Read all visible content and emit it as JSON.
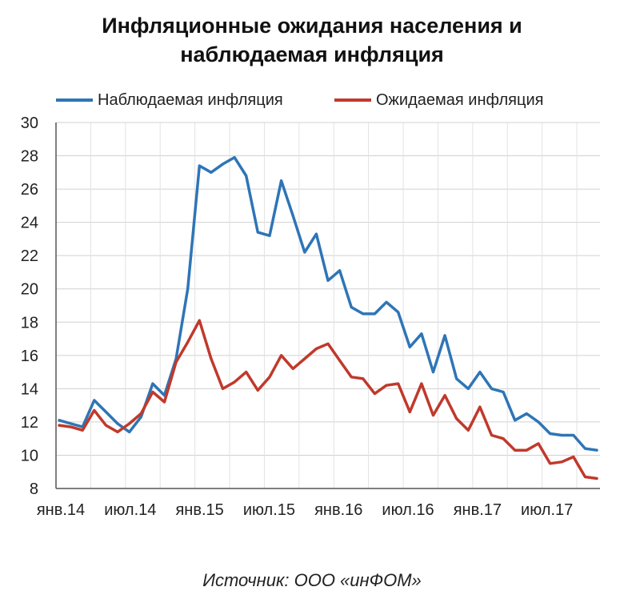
{
  "chart_data": {
    "type": "line",
    "title_line1": "Инфляционные ожидания  населения и",
    "title_line2": "наблюдаемая инфляция",
    "source": "Источник: ООО «инФОМ»",
    "ylim": [
      8,
      30
    ],
    "yticks": [
      8,
      10,
      12,
      14,
      16,
      18,
      20,
      22,
      24,
      26,
      28,
      30
    ],
    "xticks": [
      "янв.14",
      "июл.14",
      "янв.15",
      "июл.15",
      "янв.16",
      "июл.16",
      "янв.17",
      "июл.17"
    ],
    "grid": true,
    "legend_position": "top",
    "x": [
      "2014-01",
      "2014-02",
      "2014-03",
      "2014-04",
      "2014-05",
      "2014-06",
      "2014-07",
      "2014-08",
      "2014-09",
      "2014-10",
      "2014-11",
      "2014-12",
      "2015-01",
      "2015-02",
      "2015-03",
      "2015-04",
      "2015-05",
      "2015-06",
      "2015-07",
      "2015-08",
      "2015-09",
      "2015-10",
      "2015-11",
      "2015-12",
      "2016-01",
      "2016-02",
      "2016-03",
      "2016-04",
      "2016-05",
      "2016-06",
      "2016-07",
      "2016-08",
      "2016-09",
      "2016-10",
      "2016-11",
      "2016-12",
      "2017-01",
      "2017-02",
      "2017-03",
      "2017-04",
      "2017-05",
      "2017-06",
      "2017-07",
      "2017-08",
      "2017-09",
      "2017-10",
      "2017-11"
    ],
    "series": [
      {
        "name": "Наблюдаемая инфляция",
        "color": "#2e75b6",
        "values": [
          12.1,
          11.9,
          11.7,
          13.3,
          12.6,
          11.9,
          11.4,
          12.3,
          14.3,
          13.6,
          15.8,
          20.0,
          27.4,
          27.0,
          27.5,
          27.9,
          26.8,
          23.4,
          23.2,
          26.5,
          24.4,
          22.2,
          23.3,
          20.5,
          21.1,
          18.9,
          18.5,
          18.5,
          19.2,
          18.6,
          16.5,
          17.3,
          15.0,
          17.2,
          14.6,
          14.0,
          15.0,
          14.0,
          13.8,
          12.1,
          12.5,
          12.0,
          11.3,
          11.2,
          11.2,
          10.4,
          10.3
        ]
      },
      {
        "name": "Ожидаемая инфляция",
        "color": "#c0392b",
        "values": [
          11.8,
          11.7,
          11.5,
          12.7,
          11.8,
          11.4,
          11.9,
          12.5,
          13.8,
          13.2,
          15.6,
          16.8,
          18.1,
          15.8,
          14.0,
          14.4,
          15.0,
          13.9,
          14.7,
          16.0,
          15.2,
          15.8,
          16.4,
          16.7,
          15.7,
          14.7,
          14.6,
          13.7,
          14.2,
          14.3,
          12.6,
          14.3,
          12.4,
          13.6,
          12.2,
          11.5,
          12.9,
          11.2,
          11.0,
          10.3,
          10.3,
          10.7,
          9.5,
          9.6,
          9.9,
          8.7,
          8.6
        ]
      }
    ]
  }
}
